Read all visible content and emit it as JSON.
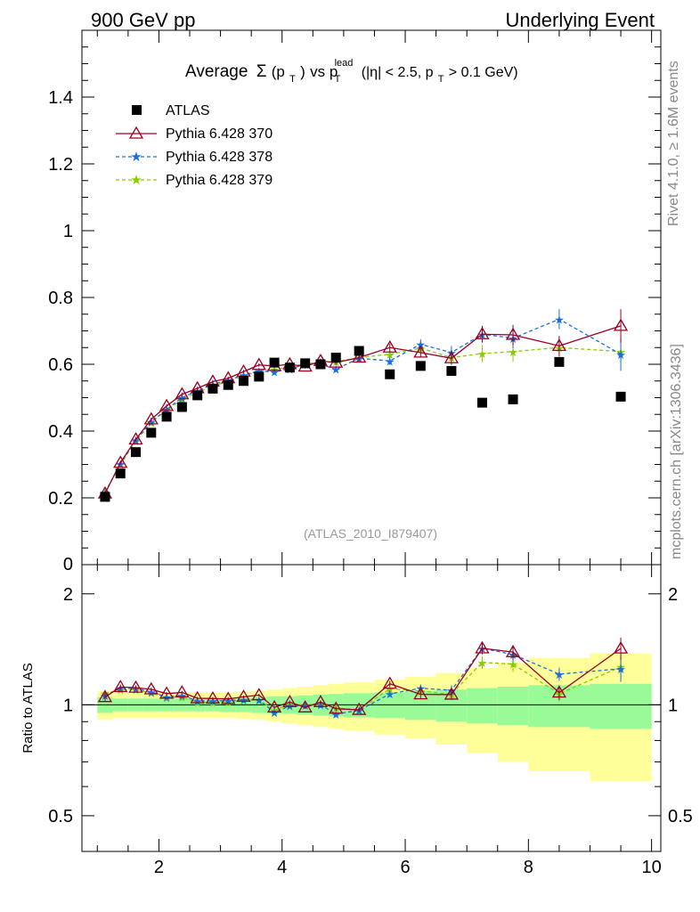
{
  "header": {
    "left": "900 GeV pp",
    "right": "Underlying Event"
  },
  "side_labels": {
    "rivet": "Rivet 4.1.0, ≥ 1.6M events",
    "mcplots": "mcplots.cern.ch [arXiv:1306.3436]"
  },
  "watermark": "(ATLAS_2010_I879407)",
  "title": {
    "prefix": "Average",
    "sigma": "Σ",
    "p": "(p",
    "t_sub": "T",
    "close": ")",
    "vs": " vs p",
    "lead_sup": "lead",
    "t_sub2": "T",
    "cut1": " (|η| < 2.5, p",
    "t_sub3": "T",
    "cut2": " > 0.1 GeV)"
  },
  "ratio_ylabel": "Ratio to ATLAS",
  "colors": {
    "data": "#000000",
    "p370": "#990022",
    "p378": "#1a6fe0",
    "p379": "#88cc00",
    "band_inner": "#98fb98",
    "band_outer": "#ffff99"
  },
  "chart_data": {
    "type": "scatter",
    "title": "Average Σ(pT) vs pT lead (|η| < 2.5, pT > 0.1 GeV)",
    "xlabel": "",
    "ylabel": "",
    "xlim": [
      0.75,
      10.15
    ],
    "ylim": [
      0,
      1.6
    ],
    "ratio_ylim": [
      0.4,
      2.4
    ],
    "x_ticks": [
      2,
      4,
      6,
      8,
      10
    ],
    "x_tick_labels": [
      "2",
      "4",
      "6",
      "8",
      "10"
    ],
    "y_ticks": [
      0.2,
      0.4,
      0.6,
      0.8,
      1,
      1.2,
      1.4
    ],
    "y_tick_labels": [
      "0.2",
      "0.4",
      "0.6",
      "0.8",
      "1",
      "1.2",
      "1.4"
    ],
    "y_zero_label": "0",
    "ratio_ticks": [
      0.5,
      1,
      2
    ],
    "ratio_tick_labels": [
      "0.5",
      "1",
      "2"
    ],
    "x": [
      1.125,
      1.375,
      1.625,
      1.875,
      2.125,
      2.375,
      2.625,
      2.875,
      3.125,
      3.375,
      3.625,
      3.875,
      4.125,
      4.375,
      4.625,
      4.875,
      5.25,
      5.75,
      6.25,
      6.75,
      7.25,
      7.75,
      8.5,
      9.5
    ],
    "x_edges": [
      1.0,
      1.25,
      1.5,
      1.75,
      2.0,
      2.25,
      2.5,
      2.75,
      3.0,
      3.25,
      3.5,
      3.75,
      4.0,
      4.25,
      4.5,
      4.75,
      5.0,
      5.5,
      6.0,
      6.5,
      7.0,
      7.5,
      8.0,
      9.0,
      10.0
    ],
    "series": [
      {
        "name": "ATLAS",
        "marker": "square",
        "values": [
          0.203,
          0.273,
          0.337,
          0.395,
          0.443,
          0.472,
          0.507,
          0.527,
          0.538,
          0.55,
          0.563,
          0.605,
          0.59,
          0.603,
          0.6,
          0.62,
          0.64,
          0.57,
          0.595,
          0.58,
          0.485,
          0.495,
          0.607,
          0.503
        ]
      },
      {
        "name": "Pythia 6.428 370",
        "marker": "triangle",
        "line": "solid",
        "values": [
          0.213,
          0.305,
          0.375,
          0.435,
          0.475,
          0.51,
          0.528,
          0.548,
          0.558,
          0.578,
          0.598,
          0.595,
          0.6,
          0.593,
          0.61,
          0.605,
          0.62,
          0.65,
          0.635,
          0.618,
          0.69,
          0.688,
          0.655,
          0.715
        ],
        "errors": [
          0.005,
          0.005,
          0.005,
          0.005,
          0.005,
          0.005,
          0.005,
          0.005,
          0.005,
          0.005,
          0.005,
          0.005,
          0.006,
          0.006,
          0.007,
          0.008,
          0.01,
          0.012,
          0.015,
          0.02,
          0.025,
          0.03,
          0.03,
          0.05
        ]
      },
      {
        "name": "Pythia 6.428 378",
        "marker": "star",
        "line": "dashed",
        "values": [
          0.215,
          0.303,
          0.373,
          0.428,
          0.465,
          0.5,
          0.52,
          0.54,
          0.552,
          0.568,
          0.58,
          0.577,
          0.586,
          0.6,
          0.6,
          0.585,
          0.618,
          0.61,
          0.66,
          0.635,
          0.69,
          0.678,
          0.735,
          0.63
        ],
        "errors": [
          0.005,
          0.005,
          0.005,
          0.005,
          0.005,
          0.005,
          0.005,
          0.005,
          0.005,
          0.005,
          0.005,
          0.005,
          0.006,
          0.006,
          0.007,
          0.008,
          0.01,
          0.012,
          0.015,
          0.02,
          0.025,
          0.03,
          0.03,
          0.05
        ]
      },
      {
        "name": "Pythia 6.428 379",
        "marker": "star",
        "line": "dashed",
        "values": [
          0.218,
          0.3,
          0.37,
          0.425,
          0.463,
          0.495,
          0.515,
          0.535,
          0.548,
          0.565,
          0.58,
          0.585,
          0.592,
          0.602,
          0.605,
          0.608,
          0.62,
          0.63,
          0.648,
          0.62,
          0.632,
          0.638,
          0.65,
          0.638
        ],
        "errors": [
          0.005,
          0.005,
          0.005,
          0.005,
          0.005,
          0.005,
          0.005,
          0.005,
          0.005,
          0.005,
          0.005,
          0.005,
          0.006,
          0.006,
          0.007,
          0.008,
          0.01,
          0.012,
          0.015,
          0.02,
          0.025,
          0.03,
          0.03,
          0.04
        ]
      }
    ],
    "ratio_band_inner": [
      0.05,
      0.04,
      0.04,
      0.04,
      0.04,
      0.04,
      0.04,
      0.04,
      0.045,
      0.045,
      0.05,
      0.055,
      0.055,
      0.06,
      0.065,
      0.07,
      0.075,
      0.08,
      0.09,
      0.1,
      0.11,
      0.12,
      0.13,
      0.14
    ],
    "ratio_band_outer": [
      0.09,
      0.08,
      0.08,
      0.08,
      0.08,
      0.08,
      0.08,
      0.08,
      0.08,
      0.085,
      0.09,
      0.1,
      0.11,
      0.12,
      0.13,
      0.14,
      0.15,
      0.17,
      0.19,
      0.22,
      0.26,
      0.3,
      0.34,
      0.38
    ]
  }
}
